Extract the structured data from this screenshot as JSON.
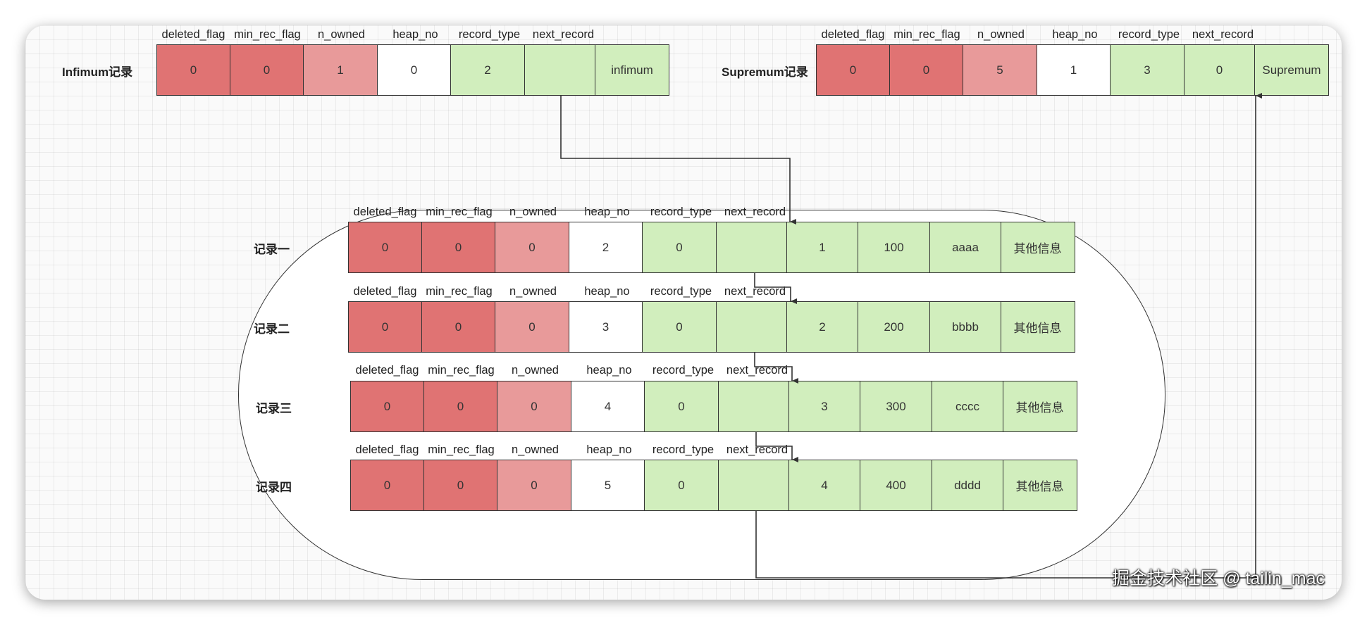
{
  "infimum": {
    "label": "Infimum记录",
    "headers": [
      "deleted_flag",
      "min_rec_flag",
      "n_owned",
      "heap_no",
      "record_type",
      "next_record"
    ],
    "cells": [
      "0",
      "0",
      "1",
      "0",
      "2",
      "",
      "infimum"
    ]
  },
  "supremum": {
    "label": "Supremum记录",
    "headers": [
      "deleted_flag",
      "min_rec_flag",
      "n_owned",
      "heap_no",
      "record_type",
      "next_record"
    ],
    "cells": [
      "0",
      "0",
      "5",
      "1",
      "3",
      "0",
      "Supremum"
    ]
  },
  "records": [
    {
      "label": "记录一",
      "headers": [
        "deleted_flag",
        "min_rec_flag",
        "n_owned",
        "heap_no",
        "record_type",
        "next_record"
      ],
      "cells": [
        "0",
        "0",
        "0",
        "2",
        "0",
        "",
        "1",
        "100",
        "aaaa",
        "其他信息"
      ]
    },
    {
      "label": "记录二",
      "headers": [
        "deleted_flag",
        "min_rec_flag",
        "n_owned",
        "heap_no",
        "record_type",
        "next_record"
      ],
      "cells": [
        "0",
        "0",
        "0",
        "3",
        "0",
        "",
        "2",
        "200",
        "bbbb",
        "其他信息"
      ]
    },
    {
      "label": "记录三",
      "headers": [
        "deleted_flag",
        "min_rec_flag",
        "n_owned",
        "heap_no",
        "record_type",
        "next_record"
      ],
      "cells": [
        "0",
        "0",
        "0",
        "4",
        "0",
        "",
        "3",
        "300",
        "cccc",
        "其他信息"
      ]
    },
    {
      "label": "记录四",
      "headers": [
        "deleted_flag",
        "min_rec_flag",
        "n_owned",
        "heap_no",
        "record_type",
        "next_record"
      ],
      "cells": [
        "0",
        "0",
        "0",
        "5",
        "0",
        "",
        "4",
        "400",
        "dddd",
        "其他信息"
      ]
    }
  ],
  "colors": {
    "deleted_flag": "#e07373",
    "min_rec_flag": "#e07373",
    "n_owned": "#e89a9a",
    "heap_no": "#ffffff",
    "record_type": "#d1eebd",
    "next_record": "#d1eebd",
    "data": "#d1eebd",
    "line": "#333333"
  },
  "watermark": "掘金技术社区 @ tailin_mac"
}
